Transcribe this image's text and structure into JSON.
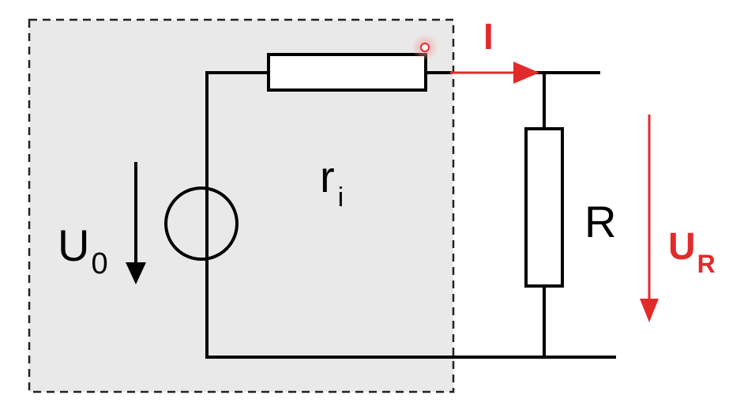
{
  "labels": {
    "source_voltage_main": "U",
    "source_voltage_sub": "0",
    "internal_resistance_main": "r",
    "internal_resistance_sub": "i",
    "load_resistance": "R",
    "current": "I",
    "load_voltage_main": "U",
    "load_voltage_sub": "R"
  },
  "colors": {
    "wire": "#000000",
    "accent": "#e12b2b",
    "source_box_fill": "#e9e9e9",
    "source_box_border": "#222222",
    "cursor_marker": "#f08a8a"
  }
}
